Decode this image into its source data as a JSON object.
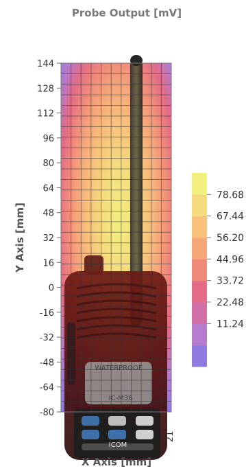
{
  "chart_data": {
    "type": "heatmap",
    "title": "Probe Output [mV]",
    "xlabel": "X Axis [mm]",
    "ylabel": "Y Axis [mm]",
    "y_ticks": [
      144,
      128,
      112,
      96,
      80,
      64,
      48,
      32,
      16,
      0,
      -16,
      -32,
      -48,
      -64,
      -80
    ],
    "ylim": [
      -80,
      144
    ],
    "x_tick_label": "21",
    "colorbar": {
      "ticks": [
        78.68,
        67.44,
        56.2,
        44.96,
        33.72,
        22.48,
        11.24
      ],
      "tick_labels": [
        "78.68",
        "67.44",
        "56.20",
        "44.96",
        "33.72",
        "22.48",
        "11.24"
      ],
      "colors": [
        "#8F7BE0",
        "#B57BCC",
        "#D06FA6",
        "#E36C86",
        "#F08A7A",
        "#F6A87A",
        "#F8C27C",
        "#F5DB7E",
        "#F2F07E"
      ]
    },
    "background_object": "two-way radio (ICOM) overlaid on field scan",
    "grid": true
  },
  "device_text": {
    "brand": "ICOM",
    "waterproof": "WATERPROOF",
    "model": "IC-M36"
  }
}
